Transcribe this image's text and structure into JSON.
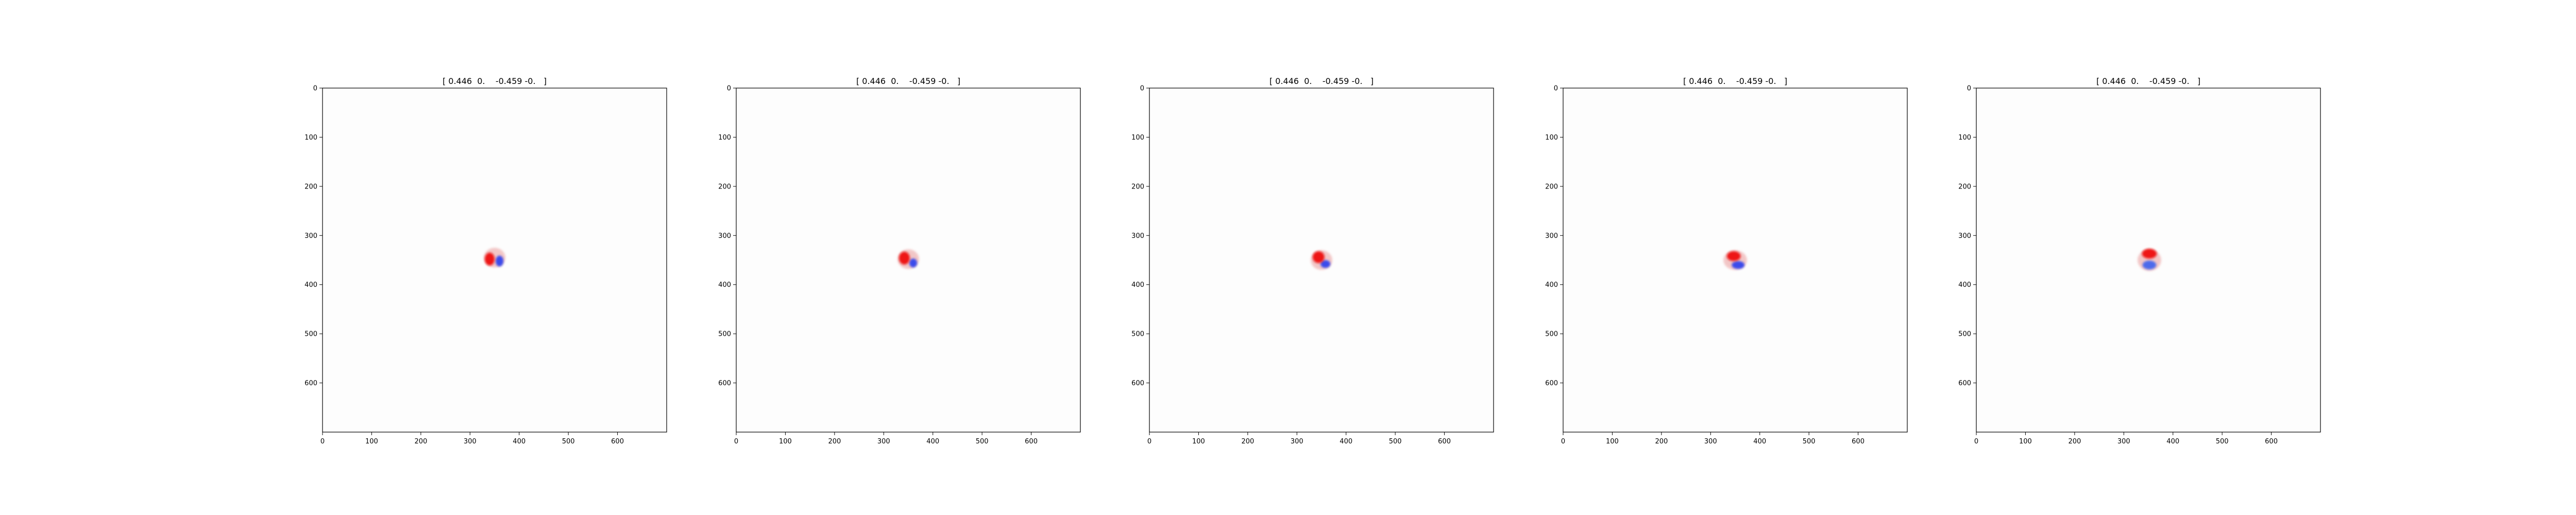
{
  "chart_data": [
    {
      "type": "heatmap",
      "title": "[ 0.446  0.    -0.459 -0.   ]",
      "xlabel": "",
      "ylabel": "",
      "xlim": [
        0,
        700
      ],
      "ylim": [
        700,
        0
      ],
      "xticks": [
        0,
        100,
        200,
        300,
        400,
        500,
        600
      ],
      "yticks": [
        0,
        100,
        200,
        300,
        400,
        500,
        600
      ],
      "colormap": "bwr",
      "background": "#fdfdfd",
      "blobs": [
        {
          "x": 340,
          "y": 348,
          "rx": 10,
          "ry": 13,
          "color": "#ee1111"
        },
        {
          "x": 360,
          "y": 352,
          "rx": 8,
          "ry": 11,
          "color": "#3344ee"
        },
        {
          "x": 350,
          "y": 345,
          "rx": 22,
          "ry": 20,
          "color": "#f2c4c4"
        }
      ]
    },
    {
      "type": "heatmap",
      "title": "[ 0.446  0.    -0.459 -0.   ]",
      "xlabel": "",
      "ylabel": "",
      "xlim": [
        0,
        700
      ],
      "ylim": [
        700,
        0
      ],
      "xticks": [
        0,
        100,
        200,
        300,
        400,
        500,
        600
      ],
      "yticks": [
        0,
        100,
        200,
        300,
        400,
        500,
        600
      ],
      "colormap": "bwr",
      "background": "#fdfdfd",
      "blobs": [
        {
          "x": 342,
          "y": 346,
          "rx": 11,
          "ry": 13,
          "color": "#ee1111"
        },
        {
          "x": 360,
          "y": 356,
          "rx": 8,
          "ry": 9,
          "color": "#3344ee"
        },
        {
          "x": 350,
          "y": 348,
          "rx": 22,
          "ry": 20,
          "color": "#f2c4c4"
        }
      ]
    },
    {
      "type": "heatmap",
      "title": "[ 0.446  0.    -0.459 -0.   ]",
      "xlabel": "",
      "ylabel": "",
      "xlim": [
        0,
        700
      ],
      "ylim": [
        700,
        0
      ],
      "xticks": [
        0,
        100,
        200,
        300,
        400,
        500,
        600
      ],
      "yticks": [
        0,
        100,
        200,
        300,
        400,
        500,
        600
      ],
      "colormap": "bwr",
      "background": "#fdfdfd",
      "blobs": [
        {
          "x": 344,
          "y": 344,
          "rx": 12,
          "ry": 12,
          "color": "#ee1111"
        },
        {
          "x": 358,
          "y": 358,
          "rx": 10,
          "ry": 8,
          "color": "#3344ee"
        },
        {
          "x": 350,
          "y": 350,
          "rx": 22,
          "ry": 20,
          "color": "#f2c4c4"
        }
      ]
    },
    {
      "type": "heatmap",
      "title": "[ 0.446  0.    -0.459 -0.   ]",
      "xlabel": "",
      "ylabel": "",
      "xlim": [
        0,
        700
      ],
      "ylim": [
        700,
        0
      ],
      "xticks": [
        0,
        100,
        200,
        300,
        400,
        500,
        600
      ],
      "yticks": [
        0,
        100,
        200,
        300,
        400,
        500,
        600
      ],
      "colormap": "bwr",
      "background": "#fdfdfd",
      "blobs": [
        {
          "x": 347,
          "y": 342,
          "rx": 14,
          "ry": 10,
          "color": "#ee1111"
        },
        {
          "x": 356,
          "y": 360,
          "rx": 13,
          "ry": 8,
          "color": "#3344ee"
        },
        {
          "x": 350,
          "y": 350,
          "rx": 24,
          "ry": 20,
          "color": "#f2c4c4"
        }
      ]
    },
    {
      "type": "heatmap",
      "title": "[ 0.446  0.    -0.459 -0.   ]",
      "xlabel": "",
      "ylabel": "",
      "xlim": [
        0,
        700
      ],
      "ylim": [
        700,
        0
      ],
      "xticks": [
        0,
        100,
        200,
        300,
        400,
        500,
        600
      ],
      "yticks": [
        0,
        100,
        200,
        300,
        400,
        500,
        600
      ],
      "colormap": "bwr",
      "background": "#fdfdfd",
      "blobs": [
        {
          "x": 352,
          "y": 337,
          "rx": 15,
          "ry": 10,
          "color": "#ee1111"
        },
        {
          "x": 352,
          "y": 360,
          "rx": 14,
          "ry": 9,
          "color": "#4466ee"
        },
        {
          "x": 352,
          "y": 350,
          "rx": 24,
          "ry": 22,
          "color": "#f2c4c4"
        }
      ]
    }
  ]
}
